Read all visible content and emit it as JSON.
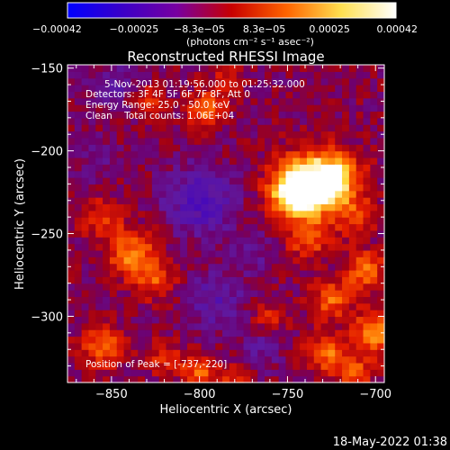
{
  "chart_data": {
    "type": "heatmap",
    "title": "Reconstructed RHESSI Image",
    "xlabel": "Heliocentric X (arcsec)",
    "ylabel": "Heliocentric Y (arcsec)",
    "xlim": [
      -875,
      -695
    ],
    "ylim": [
      -340,
      -148
    ],
    "x_ticks": [
      -850,
      -800,
      -750,
      -700
    ],
    "x_tick_labels": [
      "−850",
      "−800",
      "−750",
      "−700"
    ],
    "y_ticks": [
      -150,
      -200,
      -250,
      -300
    ],
    "y_tick_labels": [
      "−150",
      "−200",
      "−250",
      "−300"
    ],
    "colorbar": {
      "range": [
        -0.00042,
        0.00042
      ],
      "ticks": [
        -0.00042,
        -0.00025,
        -8.3e-05,
        8.3e-05,
        0.00025,
        0.00042
      ],
      "tick_labels": [
        "−0.00042",
        "−0.00025",
        "−8.3e−05",
        "8.3e−05",
        "0.00025",
        "0.00042"
      ],
      "unit_label": "(photons cm⁻² s⁻¹ asec⁻²)",
      "colors": [
        "#0000ff",
        "#3a00c8",
        "#7800a0",
        "#c80000",
        "#ff6400",
        "#ffe050",
        "#ffffff"
      ]
    },
    "annotations": {
      "time_range": "5-Nov-2013 01:19:56.000 to 01:25:32.000",
      "detectors": "Detectors: 3F 4F 5F 6F 7F 8F, Att 0",
      "energy": "Energy Range: 25.0 - 50.0 keV",
      "clean": "Clean    Total counts: 1.06E+04",
      "peak": "Position of Peak = [-737,-220]"
    },
    "peak": [
      -737,
      -220
    ],
    "blobs": [
      {
        "x": -737,
        "y": -220,
        "s": 13,
        "v": 0.00042
      },
      {
        "x": -748,
        "y": -225,
        "s": 9,
        "v": 0.00028
      },
      {
        "x": -722,
        "y": -215,
        "s": 10,
        "v": 0.00025
      },
      {
        "x": -712,
        "y": -238,
        "s": 9,
        "v": 0.00014
      },
      {
        "x": -738,
        "y": -252,
        "s": 9,
        "v": 0.00018
      },
      {
        "x": -706,
        "y": -272,
        "s": 8,
        "v": 0.00022
      },
      {
        "x": -725,
        "y": -290,
        "s": 8,
        "v": 0.0002
      },
      {
        "x": -700,
        "y": -310,
        "s": 9,
        "v": 0.00026
      },
      {
        "x": -728,
        "y": -322,
        "s": 8,
        "v": 0.00022
      },
      {
        "x": -712,
        "y": -334,
        "s": 7,
        "v": 0.00018
      },
      {
        "x": -760,
        "y": -300,
        "s": 7,
        "v": 0.00012
      },
      {
        "x": -797,
        "y": -175,
        "s": 7,
        "v": 0.00022
      },
      {
        "x": -785,
        "y": -158,
        "s": 7,
        "v": 0.00012
      },
      {
        "x": -828,
        "y": -168,
        "s": 6,
        "v": 0.00014
      },
      {
        "x": -855,
        "y": -240,
        "s": 8,
        "v": 0.00016
      },
      {
        "x": -838,
        "y": -262,
        "s": 10,
        "v": 0.00024
      },
      {
        "x": -825,
        "y": -278,
        "s": 8,
        "v": 0.00016
      },
      {
        "x": -855,
        "y": -318,
        "s": 9,
        "v": 0.0002
      },
      {
        "x": -820,
        "y": -325,
        "s": 7,
        "v": 0.00014
      },
      {
        "x": -800,
        "y": -334,
        "s": 7,
        "v": 0.0002
      },
      {
        "x": -780,
        "y": -338,
        "s": 6,
        "v": 0.00014
      },
      {
        "x": -850,
        "y": -160,
        "s": 8,
        "v": -0.00012
      },
      {
        "x": -800,
        "y": -230,
        "s": 14,
        "v": -0.00018
      },
      {
        "x": -790,
        "y": -290,
        "s": 12,
        "v": -0.00012
      },
      {
        "x": -765,
        "y": -320,
        "s": 9,
        "v": -8e-05
      },
      {
        "x": -860,
        "y": -205,
        "s": 9,
        "v": -6e-05
      },
      {
        "x": -770,
        "y": -260,
        "s": 8,
        "v": -8e-05
      }
    ]
  },
  "footer": {
    "timestamp": "18-May-2022 01:38"
  }
}
